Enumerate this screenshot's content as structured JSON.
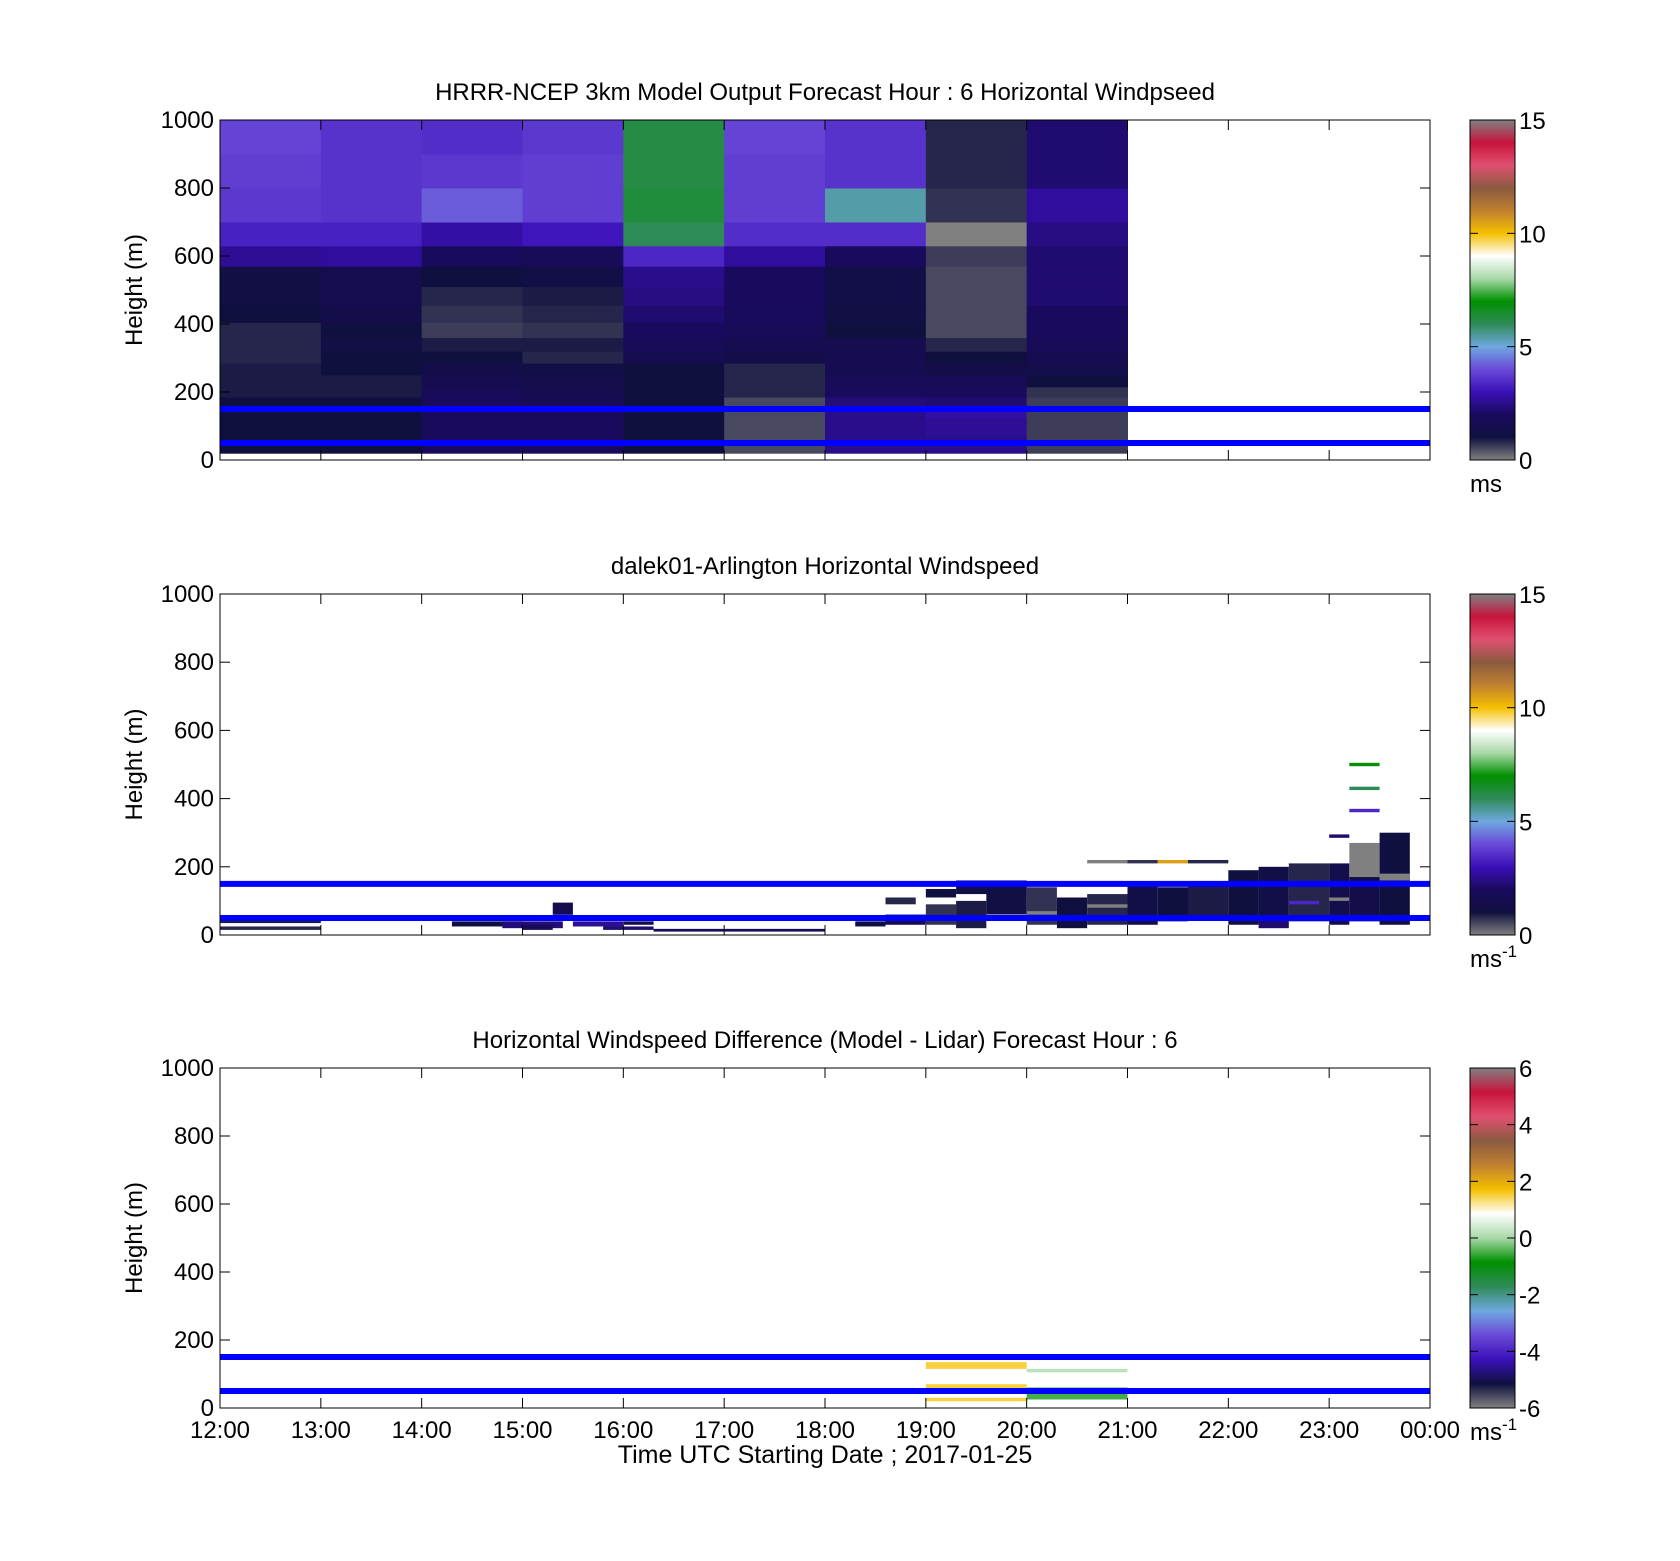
{
  "figure": {
    "xlabel": "Time UTC  Starting Date ; 2017-01-25"
  },
  "colors": {
    "reference_lines": "#0000ff",
    "frame": "#000000",
    "background": "#ffffff"
  },
  "colorbar_stops_windspeed": [
    "#808080",
    "#101040",
    "#1a0a5e",
    "#3a10b8",
    "#6a4ad8",
    "#6fa8e0",
    "#2e8b57",
    "#009000",
    "#a8d8a8",
    "#ffffff",
    "#f5c000",
    "#c08030",
    "#8b5a40",
    "#e05070",
    "#c8143c",
    "#808080"
  ],
  "colorbar_stops_difference": [
    "#808080",
    "#101040",
    "#3a10b8",
    "#6a4ad8",
    "#6fa8e0",
    "#2e8b57",
    "#009000",
    "#a8d8a8",
    "#ffffff",
    "#f5c000",
    "#c08030",
    "#8b5a40",
    "#e05070",
    "#c8143c",
    "#808080"
  ],
  "chart_data": [
    {
      "type": "heatmap",
      "title": "HRRR-NCEP 3km Model Output   Forecast Hour : 6 Horizontal Windpseed",
      "ylabel": "Height (m)",
      "xlabel": "",
      "x_tick_labels": [],
      "xlim": [
        "12:00",
        "00:00"
      ],
      "ylim": [
        0,
        1000
      ],
      "y_ticks": [
        0,
        200,
        400,
        600,
        800,
        1000
      ],
      "colorbar": {
        "ticks": [
          0,
          5,
          10,
          15
        ],
        "label": "ms",
        "label_sup": "",
        "range": [
          0,
          15
        ]
      },
      "reference_lines_height": [
        50,
        150
      ],
      "columns_start_hour": [
        12,
        13,
        14,
        15,
        16,
        17,
        18,
        19,
        20
      ],
      "column_width_hours": 1,
      "rows_height": [
        [
          20,
          45
        ],
        [
          45,
          70
        ],
        [
          70,
          95
        ],
        [
          95,
          125
        ],
        [
          125,
          155
        ],
        [
          155,
          185
        ],
        [
          185,
          215
        ],
        [
          215,
          250
        ],
        [
          250,
          285
        ],
        [
          285,
          320
        ],
        [
          320,
          360
        ],
        [
          360,
          405
        ],
        [
          405,
          455
        ],
        [
          455,
          510
        ],
        [
          510,
          570
        ],
        [
          570,
          630
        ],
        [
          630,
          700
        ],
        [
          700,
          800
        ],
        [
          800,
          900
        ],
        [
          900,
          1000
        ]
      ],
      "values_ms": [
        [
          1.0,
          1.0,
          2.0,
          2.0,
          1.0,
          0.5,
          2.5,
          2.5,
          0.6
        ],
        [
          1.0,
          1.0,
          2.0,
          2.0,
          1.0,
          0.5,
          2.5,
          2.5,
          0.6
        ],
        [
          1.0,
          1.0,
          2.0,
          2.0,
          1.0,
          0.5,
          2.5,
          2.6,
          0.6
        ],
        [
          1.0,
          1.0,
          2.0,
          2.0,
          1.0,
          0.5,
          2.5,
          2.6,
          0.6
        ],
        [
          1.0,
          1.0,
          2.0,
          2.0,
          1.0,
          0.5,
          2.5,
          2.8,
          0.6
        ],
        [
          1.0,
          1.0,
          2.0,
          1.8,
          1.0,
          0.5,
          2.3,
          2.2,
          0.6
        ],
        [
          0.9,
          0.9,
          1.8,
          1.5,
          1.0,
          0.8,
          2.0,
          2.0,
          0.7
        ],
        [
          0.9,
          0.9,
          1.5,
          1.4,
          1.0,
          0.8,
          1.8,
          1.8,
          1.0
        ],
        [
          0.9,
          1.0,
          1.3,
          1.2,
          1.0,
          0.8,
          1.6,
          1.3,
          1.4
        ],
        [
          0.8,
          1.0,
          1.0,
          0.8,
          1.5,
          1.3,
          1.6,
          1.0,
          1.6
        ],
        [
          0.8,
          1.1,
          0.9,
          0.9,
          1.8,
          1.6,
          1.5,
          0.8,
          1.8
        ],
        [
          0.8,
          1.0,
          0.6,
          0.7,
          2.0,
          1.8,
          1.0,
          0.5,
          2.0
        ],
        [
          1.0,
          1.3,
          0.7,
          0.8,
          2.2,
          1.9,
          1.1,
          0.5,
          2.0
        ],
        [
          1.1,
          1.5,
          0.8,
          0.9,
          2.4,
          2.0,
          1.2,
          0.5,
          2.2
        ],
        [
          1.1,
          1.5,
          1.0,
          1.2,
          2.5,
          2.0,
          1.2,
          0.5,
          2.2
        ],
        [
          2.6,
          2.7,
          1.9,
          1.8,
          3.4,
          2.7,
          2.0,
          0.6,
          2.2
        ],
        [
          3.3,
          3.3,
          2.8,
          3.1,
          6.0,
          3.5,
          3.5,
          15.0,
          2.4
        ],
        [
          3.7,
          3.6,
          4.2,
          3.8,
          6.3,
          3.8,
          5.4,
          0.7,
          2.7
        ],
        [
          3.8,
          3.6,
          3.7,
          3.8,
          6.2,
          3.8,
          3.6,
          0.8,
          2.2
        ],
        [
          3.9,
          3.6,
          3.5,
          3.7,
          6.2,
          3.9,
          3.6,
          0.8,
          2.2
        ]
      ]
    },
    {
      "type": "heatmap",
      "title": "dalek01-Arlington  Horizontal Windspeed",
      "ylabel": "Height (m)",
      "xlabel": "",
      "x_tick_labels": [],
      "xlim": [
        "12:00",
        "00:00"
      ],
      "ylim": [
        0,
        1000
      ],
      "y_ticks": [
        0,
        200,
        400,
        600,
        800,
        1000
      ],
      "colorbar": {
        "ticks": [
          0,
          5,
          10,
          15
        ],
        "label": "ms",
        "label_sup": "-1",
        "range": [
          0,
          15
        ]
      },
      "reference_lines_height": [
        50,
        150
      ],
      "cells": [
        {
          "x": [
            12.0,
            13.0
          ],
          "y": [
            15,
            25
          ],
          "v": 0.8
        },
        {
          "x": [
            12.0,
            13.0
          ],
          "y": [
            35,
            45
          ],
          "v": 0.9
        },
        {
          "x": [
            14.3,
            15.0
          ],
          "y": [
            25,
            40
          ],
          "v": 1.0
        },
        {
          "x": [
            14.8,
            15.4
          ],
          "y": [
            20,
            40
          ],
          "v": 2.3
        },
        {
          "x": [
            15.0,
            15.3
          ],
          "y": [
            15,
            30
          ],
          "v": 1.8
        },
        {
          "x": [
            15.3,
            15.5
          ],
          "y": [
            60,
            95
          ],
          "v": 1.5
        },
        {
          "x": [
            15.3,
            15.5
          ],
          "y": [
            45,
            60
          ],
          "v": 4.0
        },
        {
          "x": [
            15.5,
            16.0
          ],
          "y": [
            25,
            40
          ],
          "v": 2.6
        },
        {
          "x": [
            15.8,
            16.3
          ],
          "y": [
            15,
            25
          ],
          "v": 2.2
        },
        {
          "x": [
            16.0,
            16.3
          ],
          "y": [
            30,
            40
          ],
          "v": 1.3
        },
        {
          "x": [
            16.3,
            18.0
          ],
          "y": [
            10,
            18
          ],
          "v": 1.8
        },
        {
          "x": [
            18.3,
            18.6
          ],
          "y": [
            25,
            40
          ],
          "v": 1.0
        },
        {
          "x": [
            18.6,
            19.0
          ],
          "y": [
            30,
            60
          ],
          "v": 1.6
        },
        {
          "x": [
            18.6,
            18.9
          ],
          "y": [
            90,
            110
          ],
          "v": 0.8
        },
        {
          "x": [
            19.0,
            19.3
          ],
          "y": [
            110,
            135
          ],
          "v": 1.0
        },
        {
          "x": [
            19.0,
            19.3
          ],
          "y": [
            30,
            90
          ],
          "v": 0.7
        },
        {
          "x": [
            19.3,
            19.6
          ],
          "y": [
            20,
            100
          ],
          "v": 0.9
        },
        {
          "x": [
            19.6,
            20.0
          ],
          "y": [
            60,
            150
          ],
          "v": 1.1
        },
        {
          "x": [
            19.3,
            20.0
          ],
          "y": [
            120,
            160
          ],
          "v": 1.2
        },
        {
          "x": [
            20.0,
            20.3
          ],
          "y": [
            30,
            140
          ],
          "v": 0.7
        },
        {
          "x": [
            20.3,
            20.6
          ],
          "y": [
            20,
            110
          ],
          "v": 1.0
        },
        {
          "x": [
            20.6,
            21.0
          ],
          "y": [
            30,
            120
          ],
          "v": 0.8
        },
        {
          "x": [
            20.6,
            21.0
          ],
          "y": [
            80,
            90
          ],
          "v": 15.0
        },
        {
          "x": [
            20.6,
            21.0
          ],
          "y": [
            210,
            220
          ],
          "v": 15.0
        },
        {
          "x": [
            20.0,
            20.3
          ],
          "y": [
            60,
            70
          ],
          "v": 15.0
        },
        {
          "x": [
            21.0,
            21.3
          ],
          "y": [
            30,
            150
          ],
          "v": 1.2
        },
        {
          "x": [
            21.0,
            21.3
          ],
          "y": [
            210,
            220
          ],
          "v": 0.7
        },
        {
          "x": [
            21.3,
            21.6
          ],
          "y": [
            40,
            140
          ],
          "v": 1.0
        },
        {
          "x": [
            21.3,
            21.6
          ],
          "y": [
            210,
            220
          ],
          "v": 10.5
        },
        {
          "x": [
            21.6,
            22.0
          ],
          "y": [
            50,
            150
          ],
          "v": 0.9
        },
        {
          "x": [
            21.6,
            22.0
          ],
          "y": [
            210,
            220
          ],
          "v": 0.8
        },
        {
          "x": [
            22.0,
            22.3
          ],
          "y": [
            30,
            190
          ],
          "v": 1.0
        },
        {
          "x": [
            22.3,
            22.6
          ],
          "y": [
            50,
            200
          ],
          "v": 1.2
        },
        {
          "x": [
            22.3,
            22.6
          ],
          "y": [
            20,
            50
          ],
          "v": 2.2
        },
        {
          "x": [
            22.6,
            23.0
          ],
          "y": [
            40,
            210
          ],
          "v": 0.8
        },
        {
          "x": [
            22.6,
            22.9
          ],
          "y": [
            90,
            100
          ],
          "v": 3.4
        },
        {
          "x": [
            23.0,
            23.2
          ],
          "y": [
            30,
            210
          ],
          "v": 1.4
        },
        {
          "x": [
            23.0,
            23.2
          ],
          "y": [
            285,
            295
          ],
          "v": 2.2
        },
        {
          "x": [
            23.0,
            23.2
          ],
          "y": [
            100,
            110
          ],
          "v": 15.0
        },
        {
          "x": [
            23.2,
            23.5
          ],
          "y": [
            170,
            270
          ],
          "v": 15.0
        },
        {
          "x": [
            23.2,
            23.5
          ],
          "y": [
            40,
            170
          ],
          "v": 1.3
        },
        {
          "x": [
            23.2,
            23.5
          ],
          "y": [
            360,
            370
          ],
          "v": 3.4
        },
        {
          "x": [
            23.2,
            23.5
          ],
          "y": [
            425,
            435
          ],
          "v": 6.0
        },
        {
          "x": [
            23.2,
            23.5
          ],
          "y": [
            495,
            505
          ],
          "v": 6.9
        },
        {
          "x": [
            23.5,
            23.8
          ],
          "y": [
            30,
            300
          ],
          "v": 1.0
        },
        {
          "x": [
            23.5,
            23.8
          ],
          "y": [
            160,
            180
          ],
          "v": 15.0
        },
        {
          "x": [
            23.8,
            23.85
          ],
          "y": [
            0,
            0
          ],
          "v": 0.0
        }
      ]
    },
    {
      "type": "heatmap",
      "title": "Horizontal Windspeed Difference (Model - Lidar) Forecast Hour : 6",
      "ylabel": "Height (m)",
      "xlabel": "Time UTC  Starting Date ; 2017-01-25",
      "x_tick_labels": [
        "12:00",
        "13:00",
        "14:00",
        "15:00",
        "16:00",
        "17:00",
        "18:00",
        "19:00",
        "20:00",
        "21:00",
        "22:00",
        "23:00",
        "00:00"
      ],
      "xlim": [
        "12:00",
        "00:00"
      ],
      "ylim": [
        0,
        1000
      ],
      "y_ticks": [
        0,
        200,
        400,
        600,
        800,
        1000
      ],
      "colorbar": {
        "ticks": [
          -6,
          -4,
          -2,
          0,
          2,
          4,
          6
        ],
        "label": "ms",
        "label_sup": "-1",
        "range": [
          -6,
          6
        ]
      },
      "reference_lines_height": [
        50,
        150
      ],
      "cells": [
        {
          "x": [
            19.0,
            20.0
          ],
          "y": [
            115,
            135
          ],
          "v": 1.5
        },
        {
          "x": [
            19.0,
            20.0
          ],
          "y": [
            55,
            70
          ],
          "v": 1.5
        },
        {
          "x": [
            19.0,
            20.0
          ],
          "y": [
            20,
            30
          ],
          "v": 1.5
        },
        {
          "x": [
            20.0,
            21.0
          ],
          "y": [
            105,
            115
          ],
          "v": 0.2
        },
        {
          "x": [
            20.0,
            21.0
          ],
          "y": [
            40,
            60
          ],
          "v": -0.8
        },
        {
          "x": [
            20.0,
            21.0
          ],
          "y": [
            25,
            40
          ],
          "v": -0.5
        }
      ]
    }
  ]
}
